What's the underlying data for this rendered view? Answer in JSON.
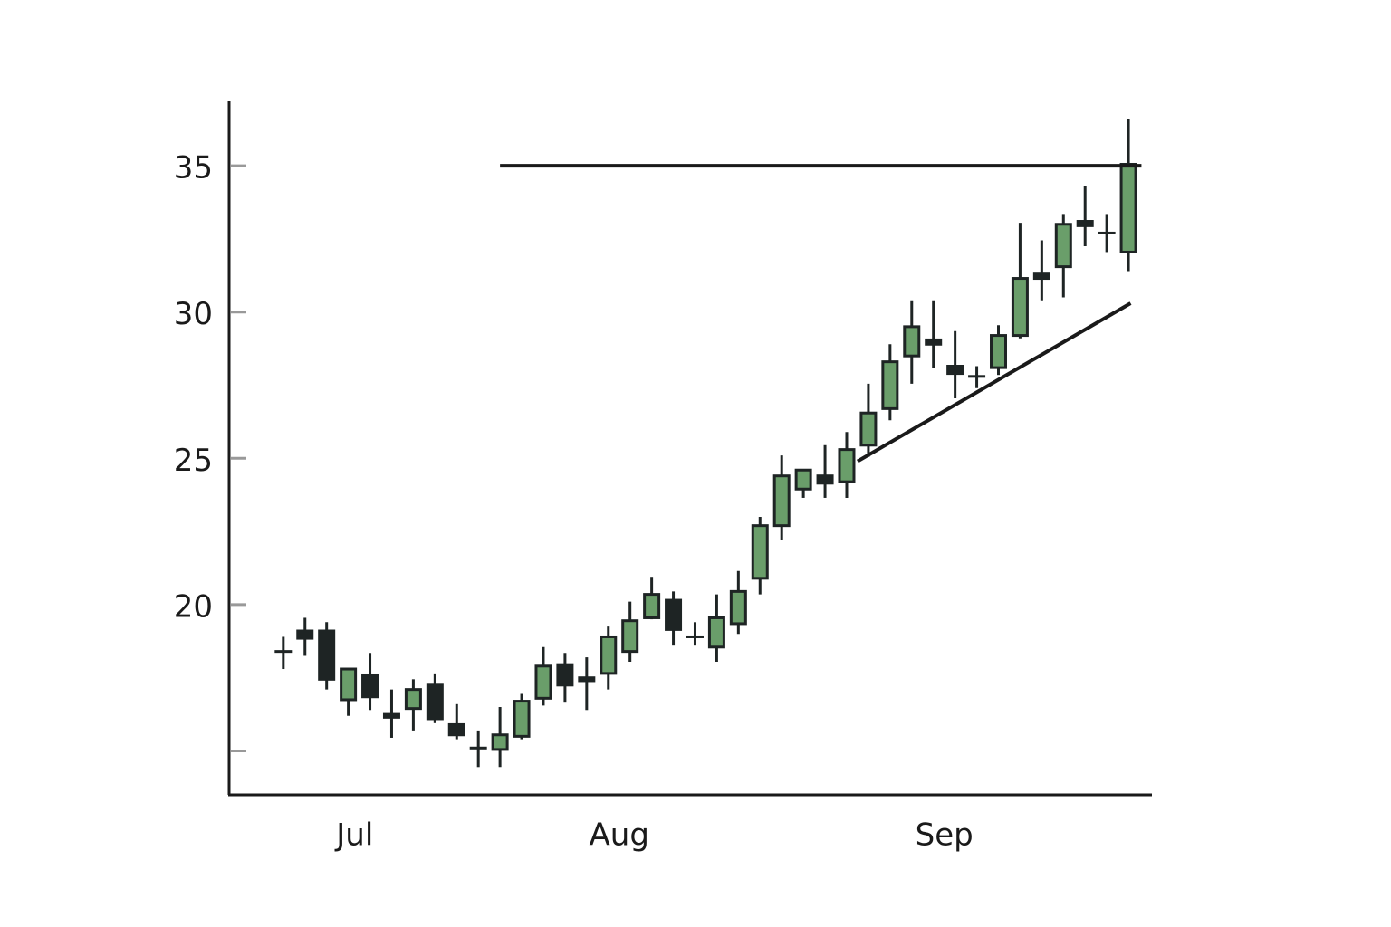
{
  "chart_data": {
    "type": "candlestick",
    "x": [
      0,
      1,
      2,
      3,
      4,
      5,
      6,
      7,
      8,
      9,
      10,
      11,
      12,
      13,
      14,
      15,
      16,
      17,
      18,
      19,
      20,
      21,
      22,
      23,
      24,
      25,
      26,
      27,
      28,
      29,
      30,
      31,
      32,
      33,
      34,
      35,
      36,
      37,
      38,
      39
    ],
    "open": [
      18.4,
      19.1,
      19.1,
      16.75,
      17.6,
      16.25,
      16.45,
      17.25,
      15.9,
      15.1,
      15.05,
      15.5,
      16.8,
      17.95,
      17.5,
      17.65,
      18.4,
      19.55,
      20.15,
      18.9,
      18.55,
      19.35,
      20.9,
      22.7,
      23.95,
      24.4,
      24.2,
      25.45,
      26.7,
      28.5,
      29.05,
      28.15,
      27.8,
      28.1,
      29.2,
      31.3,
      31.55,
      33.1,
      32.7,
      32.05
    ],
    "high": [
      18.9,
      19.55,
      19.4,
      17.8,
      18.35,
      17.1,
      17.45,
      17.65,
      16.6,
      15.7,
      16.5,
      16.95,
      18.55,
      18.35,
      18.2,
      19.25,
      20.1,
      20.95,
      20.45,
      19.4,
      20.35,
      21.15,
      23.0,
      25.1,
      24.6,
      25.45,
      25.9,
      27.55,
      28.9,
      30.4,
      30.4,
      29.35,
      28.15,
      29.55,
      33.05,
      32.45,
      33.35,
      34.3,
      33.35,
      36.6
    ],
    "low": [
      17.8,
      18.25,
      17.1,
      16.2,
      16.4,
      15.45,
      15.7,
      15.95,
      15.4,
      14.45,
      14.45,
      15.4,
      16.55,
      16.65,
      16.4,
      17.1,
      18.05,
      19.5,
      18.6,
      18.6,
      18.05,
      19.0,
      20.35,
      22.2,
      23.65,
      23.65,
      23.65,
      25.05,
      26.3,
      27.55,
      28.1,
      27.05,
      27.4,
      27.85,
      29.1,
      30.4,
      30.5,
      32.25,
      32.05,
      31.4
    ],
    "close": [
      18.4,
      18.85,
      17.45,
      17.8,
      16.85,
      16.15,
      17.1,
      16.1,
      15.55,
      15.1,
      15.55,
      16.7,
      17.9,
      17.25,
      17.4,
      18.9,
      19.45,
      20.35,
      19.15,
      18.9,
      19.55,
      20.45,
      22.7,
      24.4,
      24.6,
      24.15,
      25.3,
      26.55,
      28.3,
      29.5,
      28.9,
      27.9,
      27.8,
      29.2,
      31.15,
      31.15,
      33.0,
      32.95,
      32.7,
      35.05
    ],
    "up_color": "#6a9e6a",
    "down_color": "#1e2424",
    "xlim": [
      -2.5,
      40
    ],
    "xticks": [
      {
        "value": 3.3,
        "label": "Jul"
      },
      {
        "value": 15.5,
        "label": "Aug"
      },
      {
        "value": 30.5,
        "label": "Sep"
      }
    ],
    "ylim": [
      13.5,
      37.2
    ],
    "yticks": [
      {
        "value": 15,
        "label": null
      },
      20,
      25,
      30,
      35
    ],
    "lines": [
      {
        "x": [
          10,
          39.6
        ],
        "y": [
          35,
          35
        ]
      },
      {
        "x": [
          26.5,
          39.1
        ],
        "y": [
          24.9,
          30.3
        ]
      }
    ]
  }
}
